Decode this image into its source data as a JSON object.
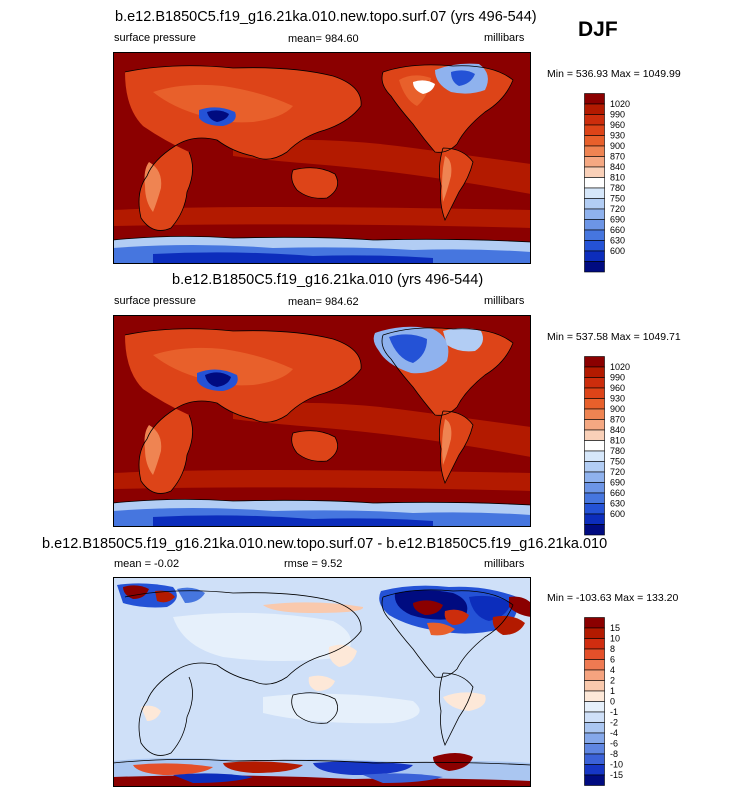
{
  "season": "DJF",
  "panels": [
    {
      "title": "b.e12.B1850C5.f19_g16.21ka.010.new.topo.surf.07 (yrs 496-544)",
      "left_label": "surface pressure",
      "center_label": "mean= 984.60",
      "right_label": "millibars",
      "minmax": "Min = 536.93 Max = 1049.99"
    },
    {
      "title": "b.e12.B1850C5.f19_g16.21ka.010 (yrs 496-544)",
      "left_label": "surface pressure",
      "center_label": "mean= 984.62",
      "right_label": "millibars",
      "minmax": "Min = 537.58 Max = 1049.71"
    },
    {
      "title": "b.e12.B1850C5.f19_g16.21ka.010.new.topo.surf.07 - b.e12.B1850C5.f19_g16.21ka.010",
      "left_label": "mean =  -0.02",
      "center_label": "rmse =   9.52",
      "right_label": "millibars",
      "minmax": "Min = -103.63 Max = 133.20"
    }
  ],
  "chart_data": [
    {
      "type": "heatmap",
      "title": "b.e12.B1850C5.f19_g16.21ka.010.new.topo.surf.07 (yrs 496-544)",
      "variable": "surface pressure",
      "units": "millibars",
      "mean": 984.6,
      "min": 536.93,
      "max": 1049.99,
      "colorbar": {
        "labels": [
          "1020",
          "990",
          "960",
          "930",
          "900",
          "870",
          "840",
          "810",
          "780",
          "750",
          "720",
          "690",
          "660",
          "630",
          "600"
        ],
        "colors": [
          "#8b0000",
          "#b31a00",
          "#cc2d0c",
          "#dd4418",
          "#e8602b",
          "#ef8452",
          "#f5a882",
          "#f9d0b8",
          "#ffffff",
          "#d6e7fa",
          "#b2cdf4",
          "#8fb2ee",
          "#6c95e6",
          "#4676df",
          "#2452d6",
          "#0c2dbc",
          "#000b80"
        ]
      }
    },
    {
      "type": "heatmap",
      "title": "b.e12.B1850C5.f19_g16.21ka.010 (yrs 496-544)",
      "variable": "surface pressure",
      "units": "millibars",
      "mean": 984.62,
      "min": 537.58,
      "max": 1049.71,
      "colorbar": {
        "labels": [
          "1020",
          "990",
          "960",
          "930",
          "900",
          "870",
          "840",
          "810",
          "780",
          "750",
          "720",
          "690",
          "660",
          "630",
          "600"
        ],
        "colors": [
          "#8b0000",
          "#b31a00",
          "#cc2d0c",
          "#dd4418",
          "#e8602b",
          "#ef8452",
          "#f5a882",
          "#f9d0b8",
          "#ffffff",
          "#d6e7fa",
          "#b2cdf4",
          "#8fb2ee",
          "#6c95e6",
          "#4676df",
          "#2452d6",
          "#0c2dbc",
          "#000b80"
        ]
      }
    },
    {
      "type": "heatmap",
      "title": "b.e12.B1850C5.f19_g16.21ka.010.new.topo.surf.07 - b.e12.B1850C5.f19_g16.21ka.010",
      "units": "millibars",
      "mean": -0.02,
      "rmse": 9.52,
      "min": -103.63,
      "max": 133.2,
      "colorbar": {
        "labels": [
          "15",
          "10",
          "8",
          "6",
          "4",
          "2",
          "1",
          "0",
          "-1",
          "-2",
          "-4",
          "-6",
          "-8",
          "-10",
          "-15"
        ],
        "colors": [
          "#8b0000",
          "#b31a00",
          "#d02d10",
          "#e4502a",
          "#ef7a52",
          "#f5a37f",
          "#f9c9ad",
          "#fde8d8",
          "#e6f0fb",
          "#cfe0f8",
          "#aac6f1",
          "#85a8ea",
          "#5f86e2",
          "#3b62d8",
          "#1636c5",
          "#000b80"
        ]
      }
    }
  ]
}
